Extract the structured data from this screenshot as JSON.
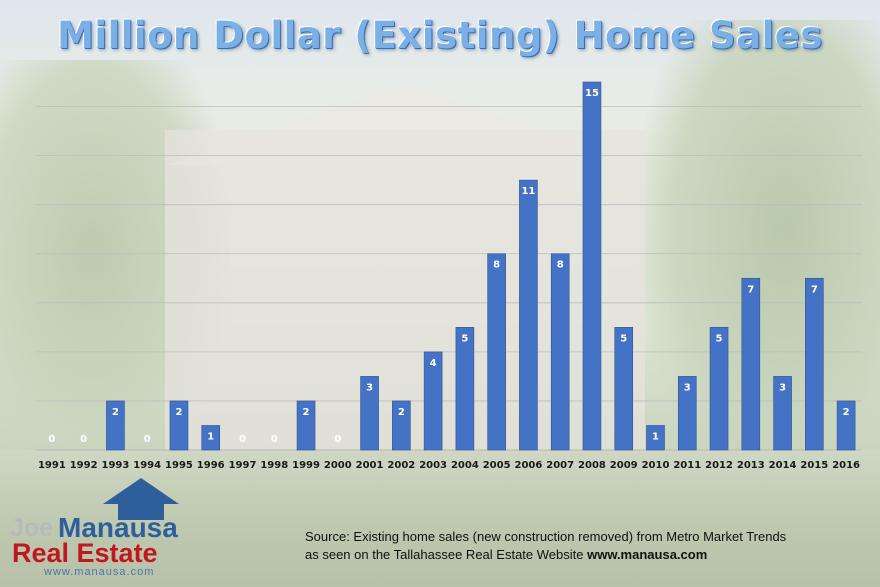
{
  "chart_data": {
    "type": "bar",
    "title": "Million Dollar (Existing) Home Sales",
    "categories": [
      "1991",
      "1992",
      "1993",
      "1994",
      "1995",
      "1996",
      "1997",
      "1998",
      "1999",
      "2000",
      "2001",
      "2002",
      "2003",
      "2004",
      "2005",
      "2006",
      "2007",
      "2008",
      "2009",
      "2010",
      "2011",
      "2012",
      "2013",
      "2014",
      "2015",
      "2016"
    ],
    "values": [
      0,
      0,
      2,
      0,
      2,
      1,
      0,
      0,
      2,
      0,
      3,
      2,
      4,
      5,
      8,
      11,
      8,
      15,
      5,
      1,
      3,
      5,
      7,
      3,
      7,
      2
    ],
    "ylim": [
      0,
      15
    ],
    "grid": true,
    "bar_color": "#4472c4",
    "label_color": "#ffffff",
    "grid_color": "#bdbdbd"
  },
  "source": {
    "line1": "Source: Existing home sales (new construction removed) from Metro Market Trends",
    "line2_prefix": "as seen on the Tallahassee Real Estate Website ",
    "line2_url": "www.manausa.com"
  },
  "logo": {
    "joe": "Joe",
    "manausa": "Manausa",
    "real_estate": "Real Estate",
    "url": "www.manausa.com"
  },
  "colors": {
    "title": "#7ab0e6",
    "logo_blue": "#2f5f9b",
    "logo_red": "#c0181f"
  }
}
